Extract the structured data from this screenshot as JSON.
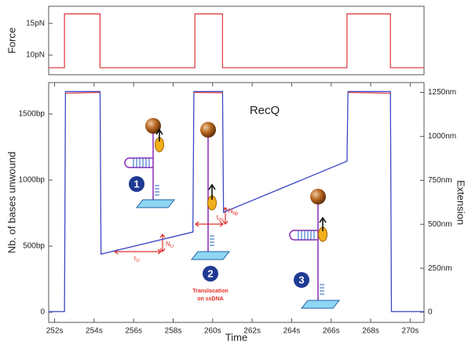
{
  "chart_data": [
    {
      "type": "line",
      "ylabel": "Force",
      "xlim": [
        251.7,
        270.7
      ],
      "ylim": [
        6.9,
        17.7
      ],
      "yticks": [
        {
          "value": 10,
          "label": "10pN"
        },
        {
          "value": 15,
          "label": "15pN"
        }
      ],
      "x": [
        251.7,
        252.5,
        252.5,
        254.3,
        254.3,
        259.1,
        259.1,
        260.5,
        260.5,
        266.8,
        266.8,
        269.0,
        269.0,
        270.7
      ],
      "series": [
        {
          "color": "#e0424a",
          "values": [
            8,
            8,
            16.5,
            16.5,
            8,
            8,
            16.5,
            16.5,
            8,
            8,
            16.5,
            16.5,
            8,
            8
          ]
        }
      ]
    },
    {
      "type": "line",
      "title": "RecQ",
      "xlabel": "Time",
      "ylabel": "Nb. of bases unwound",
      "y2label": "Extension",
      "xlim": [
        251.7,
        270.7
      ],
      "ylim": [
        -77,
        1738
      ],
      "y2lim": [
        -58,
        1306
      ],
      "xticks": [
        {
          "value": 252,
          "label": "252s"
        },
        {
          "value": 254,
          "label": "254s"
        },
        {
          "value": 256,
          "label": "256s"
        },
        {
          "value": 258,
          "label": "258s"
        },
        {
          "value": 260,
          "label": "260s"
        },
        {
          "value": 262,
          "label": "262s"
        },
        {
          "value": 264,
          "label": "264s"
        },
        {
          "value": 266,
          "label": "266s"
        },
        {
          "value": 268,
          "label": "268s"
        },
        {
          "value": 270,
          "label": "270s"
        }
      ],
      "yticks": [
        0,
        {
          "value": 500,
          "label": "500bp"
        },
        {
          "value": 1000,
          "label": "1000bp"
        },
        {
          "value": 1500,
          "label": "1500bp"
        }
      ],
      "y2ticks": [
        0,
        {
          "value": 250,
          "label": "250nm"
        },
        {
          "value": 500,
          "label": "500nm"
        },
        {
          "value": 750,
          "label": "750nm"
        },
        {
          "value": 1000,
          "label": "1000nm"
        },
        {
          "value": 1250,
          "label": "1250nm"
        }
      ],
      "x": [
        251.7,
        252.5,
        252.55,
        254.3,
        254.35,
        259.0,
        259.05,
        260.5,
        260.55,
        266.8,
        266.85,
        269.0,
        269.05,
        270.7
      ],
      "series": [
        {
          "color": "#3b48c4",
          "values": [
            5,
            5,
            1670,
            1670,
            440,
            607,
            1670,
            1670,
            756,
            1143,
            1670,
            1670,
            5,
            5
          ]
        },
        {
          "color": "#e0424a",
          "axis": "y2",
          "values": [
            null,
            null,
            1245,
            1250,
            null,
            null,
            1250,
            1248,
            null,
            null,
            1250,
            1245,
            null,
            null
          ]
        }
      ],
      "annotations": [
        "1",
        "2",
        "3",
        "Translocation",
        "on ssDNA",
        {
          "main": "N",
          "sub": "U"
        },
        {
          "main": "τ",
          "sub": "U"
        },
        {
          "main": "N",
          "sub": "bp"
        },
        {
          "main": "τ",
          "sub": "bs"
        }
      ]
    }
  ]
}
